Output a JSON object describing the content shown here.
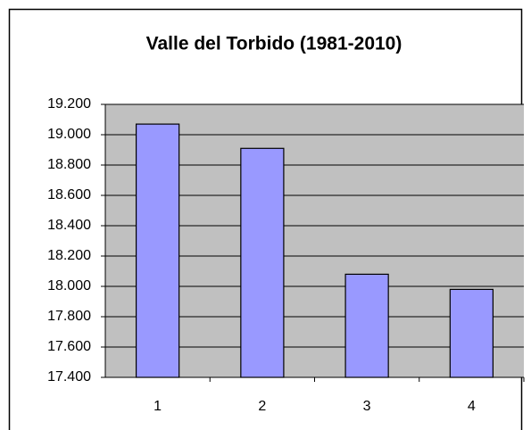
{
  "chart_data": {
    "type": "bar",
    "title": "Valle del Torbido (1981-2010)",
    "categories": [
      "1",
      "2",
      "3",
      "4"
    ],
    "values": [
      19.07,
      18.91,
      18.08,
      17.98
    ],
    "color": "#9999ff",
    "ylim": [
      17.4,
      19.2
    ],
    "yticks": [
      {
        "value": 17.4,
        "label": "17.400"
      },
      {
        "value": 17.6,
        "label": "17.600"
      },
      {
        "value": 17.8,
        "label": "17.800"
      },
      {
        "value": 18.0,
        "label": "18.000"
      },
      {
        "value": 18.2,
        "label": "18.200"
      },
      {
        "value": 18.4,
        "label": "18.400"
      },
      {
        "value": 18.6,
        "label": "18.600"
      },
      {
        "value": 18.8,
        "label": "18.800"
      },
      {
        "value": 19.0,
        "label": "19.000"
      },
      {
        "value": 19.2,
        "label": "19.200"
      }
    ],
    "grid": true
  }
}
